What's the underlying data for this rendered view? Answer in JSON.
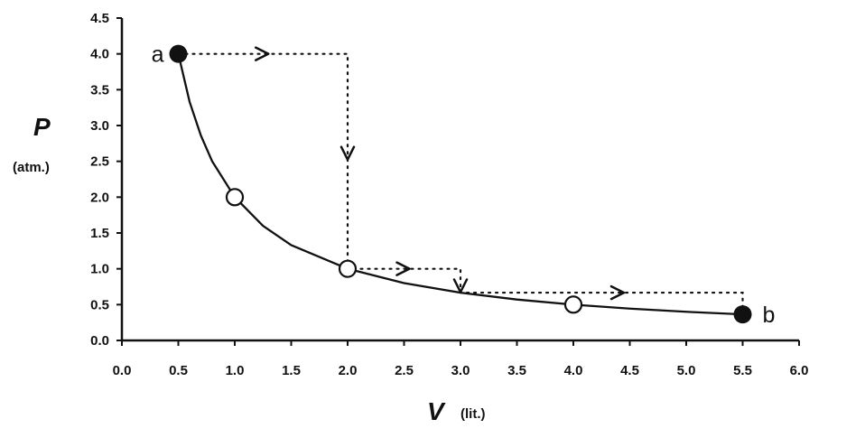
{
  "chart_data": {
    "type": "line",
    "title": "",
    "xlabel": "V",
    "xlabel_unit": "(lit.)",
    "ylabel": "P",
    "ylabel_unit": "(atm.)",
    "xlim": [
      0,
      6
    ],
    "ylim": [
      0,
      4.5
    ],
    "x_ticks": [
      "0.0",
      "0.5",
      "1.0",
      "1.5",
      "2.0",
      "2.5",
      "3.0",
      "3.5",
      "4.0",
      "4.5",
      "5.0",
      "5.5",
      "6.0"
    ],
    "y_ticks": [
      "0.0",
      "0.5",
      "1.0",
      "1.5",
      "2.0",
      "2.5",
      "3.0",
      "3.5",
      "4.0",
      "4.5"
    ],
    "grid": false,
    "curve": {
      "relation": "PV = 2",
      "x": [
        0.5,
        0.6,
        0.7,
        0.8,
        1.0,
        1.25,
        1.5,
        2.0,
        2.5,
        3.0,
        3.5,
        4.0,
        4.5,
        5.0,
        5.5
      ],
      "y": [
        4.0,
        3.33,
        2.86,
        2.5,
        2.0,
        1.6,
        1.33,
        1.0,
        0.8,
        0.667,
        0.571,
        0.5,
        0.444,
        0.4,
        0.364
      ]
    },
    "endpoints": [
      {
        "label": "a",
        "x": 0.5,
        "y": 4.0
      },
      {
        "label": "b",
        "x": 5.5,
        "y": 0.364
      }
    ],
    "open_points": [
      {
        "x": 1.0,
        "y": 2.0
      },
      {
        "x": 2.0,
        "y": 1.0
      },
      {
        "x": 4.0,
        "y": 0.5
      }
    ],
    "dotted_path": {
      "x": [
        0.5,
        2.0,
        2.0,
        3.0,
        3.0,
        5.5,
        5.5
      ],
      "y": [
        4.0,
        4.0,
        1.0,
        1.0,
        0.667,
        0.667,
        0.364
      ],
      "arrows": [
        {
          "x": 1.25,
          "y": 4.0,
          "dir": "right"
        },
        {
          "x": 2.0,
          "y": 2.6,
          "dir": "down"
        },
        {
          "x": 2.5,
          "y": 1.0,
          "dir": "right"
        },
        {
          "x": 3.0,
          "y": 0.75,
          "dir": "down"
        },
        {
          "x": 4.4,
          "y": 0.667,
          "dir": "right"
        }
      ]
    }
  }
}
